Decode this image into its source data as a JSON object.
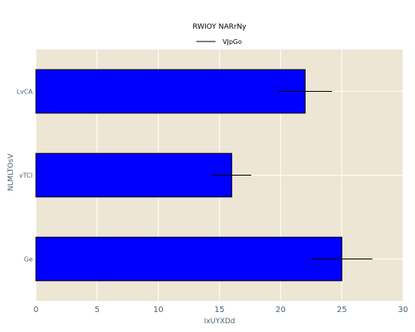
{
  "chart_data": {
    "type": "bar",
    "orientation": "horizontal",
    "title": "RWIOY NARrNy",
    "xlabel": "IxUYXDd",
    "ylabel": "NLMLTOsV",
    "categories": [
      "LvCA",
      "vTCl",
      "Ge"
    ],
    "series": [
      {
        "name": "VJpGo",
        "values": [
          22,
          16,
          25
        ],
        "error": [
          2.2,
          1.6,
          2.5
        ]
      }
    ],
    "xlim": [
      0,
      30
    ],
    "xticks": [
      "0",
      "5",
      "10",
      "15",
      "20",
      "25",
      "30"
    ],
    "grid": true,
    "legend_position": "top-center",
    "colors": {
      "bar_fill": "#0000ff",
      "bar_edge": "#000000",
      "plot_background": "#ede6d4",
      "grid": "#ffffff",
      "error_bar": "#000000"
    }
  }
}
